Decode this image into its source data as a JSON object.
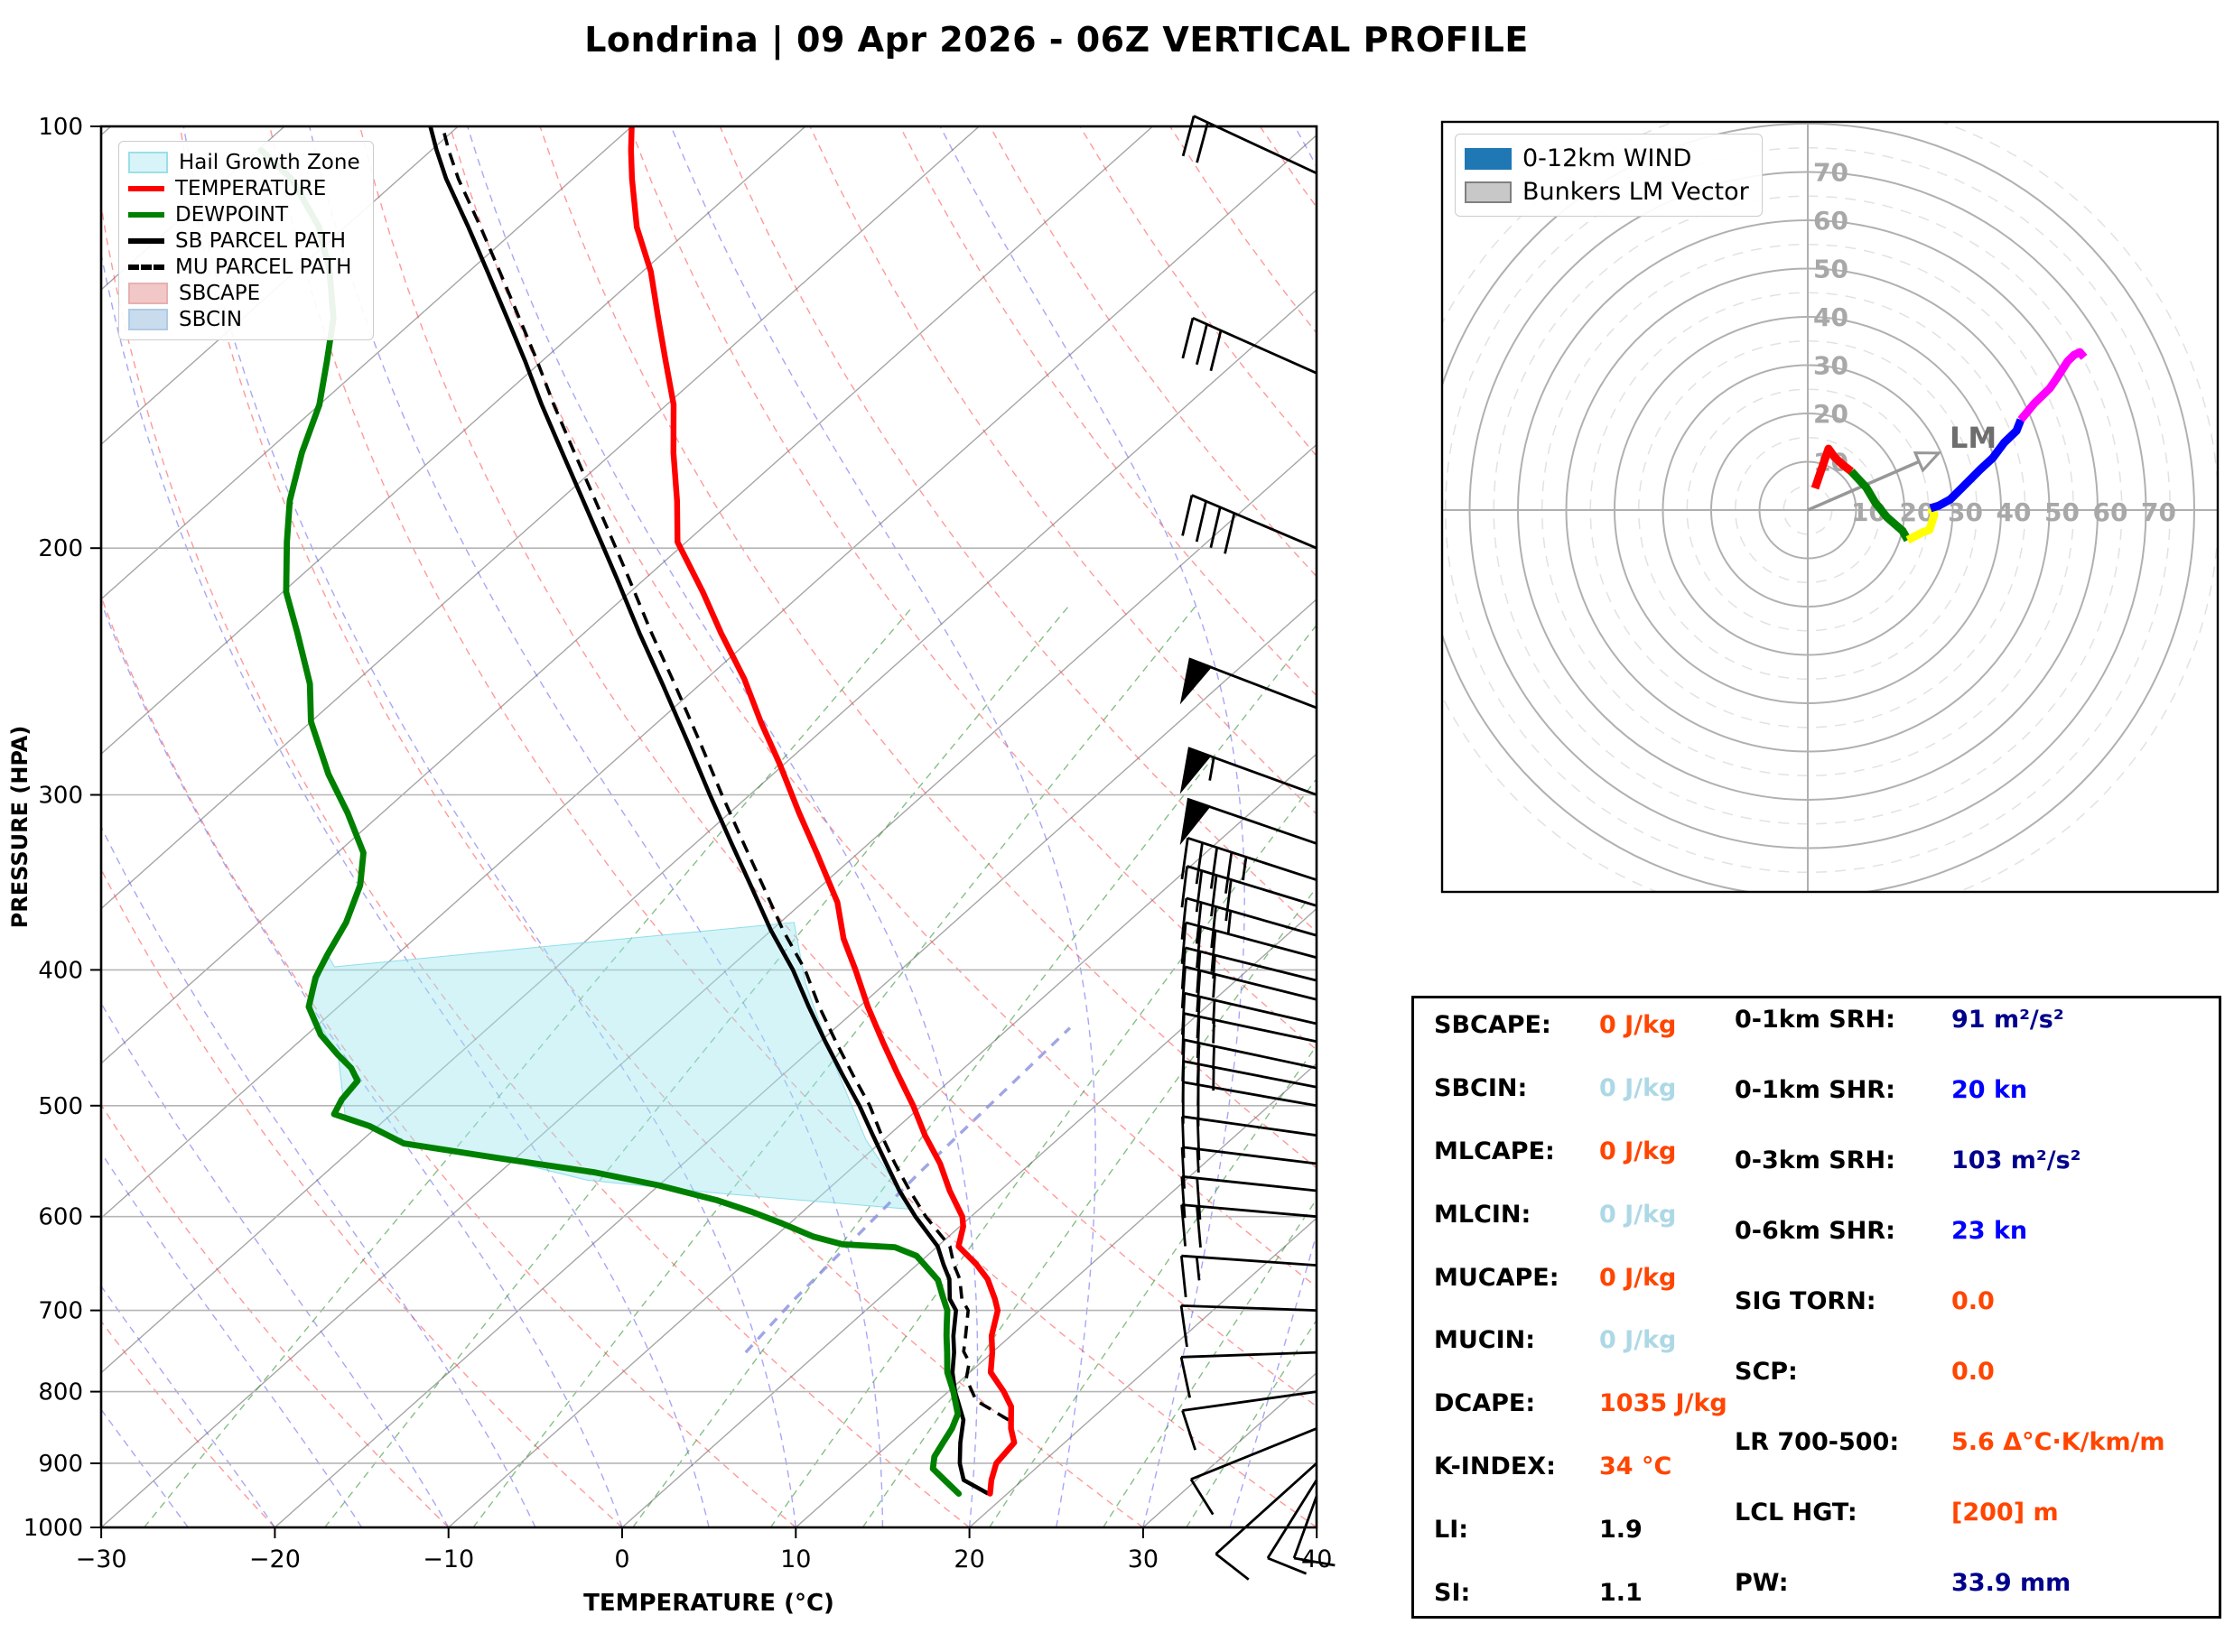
{
  "title": "Londrina | 09 Apr 2026 - 06Z VERTICAL PROFILE",
  "skewt": {
    "xlabel": "TEMPERATURE (°C)",
    "ylabel": "PRESSURE (HPA)",
    "x_ticks": [
      -30,
      -20,
      -10,
      0,
      10,
      20,
      30,
      40
    ],
    "y_ticks": [
      100,
      200,
      300,
      400,
      500,
      600,
      700,
      800,
      900,
      1000
    ],
    "legend": [
      {
        "label": "Hail Growth Zone",
        "swatch": "patch",
        "color": "#d8f4f8",
        "edge": "#9adfe8"
      },
      {
        "label": "TEMPERATURE",
        "swatch": "line",
        "color": "#ff0000"
      },
      {
        "label": "DEWPOINT",
        "swatch": "line",
        "color": "#008000"
      },
      {
        "label": "SB PARCEL PATH",
        "swatch": "line",
        "color": "#000000"
      },
      {
        "label": "MU PARCEL PATH",
        "swatch": "dashed",
        "color": "#000000"
      },
      {
        "label": "SBCAPE",
        "swatch": "patch",
        "color": "#f2c7c7",
        "edge": "#e8b0b0"
      },
      {
        "label": "SBCIN",
        "swatch": "patch",
        "color": "#c9dcee",
        "edge": "#b0cbe4"
      }
    ]
  },
  "hodograph": {
    "legend": [
      {
        "label": "0-12km WIND",
        "color": "#1f77b4",
        "edge": "#1f77b4"
      },
      {
        "label": "Bunkers LM Vector",
        "color": "#c8c8c8",
        "edge": "#808080"
      }
    ],
    "ring_labels": [
      10,
      20,
      30,
      40,
      50,
      60,
      70
    ],
    "lm_label": "LM"
  },
  "stats": {
    "left": [
      {
        "label": "SBCAPE:",
        "value": "0 J/kg",
        "color": "#ff4500"
      },
      {
        "label": "SBCIN:",
        "value": "0 J/kg",
        "color": "#add8e6"
      },
      {
        "label": "MLCAPE:",
        "value": "0 J/kg",
        "color": "#ff4500"
      },
      {
        "label": "MLCIN:",
        "value": "0 J/kg",
        "color": "#add8e6"
      },
      {
        "label": "MUCAPE:",
        "value": "0 J/kg",
        "color": "#ff4500"
      },
      {
        "label": "MUCIN:",
        "value": "0 J/kg",
        "color": "#add8e6"
      },
      {
        "label": "DCAPE:",
        "value": "1035 J/kg",
        "color": "#ff4500"
      },
      {
        "label": "K-INDEX:",
        "value": "34 °C",
        "color": "#ff4500"
      },
      {
        "label": "LI:",
        "value": "1.9",
        "color": "#000000"
      },
      {
        "label": "SI:",
        "value": "1.1",
        "color": "#000000"
      }
    ],
    "right": [
      {
        "label": "0-1km SRH:",
        "value": "91 m²/s²",
        "color": "#00008b"
      },
      {
        "label": "0-1km SHR:",
        "value": "20 kn",
        "color": "#0000ff"
      },
      {
        "label": "0-3km SRH:",
        "value": "103 m²/s²",
        "color": "#00008b"
      },
      {
        "label": "0-6km SHR:",
        "value": "23 kn",
        "color": "#0000ff"
      },
      {
        "label": "SIG TORN:",
        "value": "0.0",
        "color": "#ff4500"
      },
      {
        "label": "SCP:",
        "value": "0.0",
        "color": "#ff4500"
      },
      {
        "label": "LR 700-500:",
        "value": "5.6 Δ°C·K/km/m",
        "color": "#ff4500"
      },
      {
        "label": "LCL HGT:",
        "value": "[200] m",
        "color": "#ff4500"
      },
      {
        "label": "PW:",
        "value": "33.9 mm",
        "color": "#00008b"
      }
    ]
  },
  "chart_data": {
    "type": "skewt-logp-sounding-with-hodograph",
    "pressure_axis_hpa": [
      100,
      1000
    ],
    "temperature_axis_c": [
      -30,
      40
    ],
    "temperature_profile_p_T": [
      [
        946,
        19.0
      ],
      [
        925,
        18.2
      ],
      [
        900,
        17.4
      ],
      [
        870,
        17.1
      ],
      [
        850,
        16.0
      ],
      [
        820,
        14.6
      ],
      [
        800,
        13.2
      ],
      [
        775,
        11.2
      ],
      [
        750,
        10.0
      ],
      [
        730,
        8.9
      ],
      [
        700,
        7.6
      ],
      [
        687,
        6.7
      ],
      [
        665,
        5.0
      ],
      [
        649,
        3.4
      ],
      [
        630,
        1.2
      ],
      [
        610,
        0.2
      ],
      [
        600,
        -0.5
      ],
      [
        575,
        -2.9
      ],
      [
        550,
        -5.2
      ],
      [
        525,
        -7.9
      ],
      [
        500,
        -10.5
      ],
      [
        475,
        -13.4
      ],
      [
        450,
        -16.4
      ],
      [
        425,
        -19.5
      ],
      [
        400,
        -22.6
      ],
      [
        380,
        -25.3
      ],
      [
        358,
        -28.0
      ],
      [
        330,
        -32.4
      ],
      [
        309,
        -36.0
      ],
      [
        285,
        -40.3
      ],
      [
        266,
        -44.1
      ],
      [
        248,
        -47.8
      ],
      [
        230,
        -52.1
      ],
      [
        215,
        -55.8
      ],
      [
        198,
        -60.5
      ],
      [
        185,
        -63.2
      ],
      [
        171,
        -66.5
      ],
      [
        158,
        -69.6
      ],
      [
        147,
        -72.9
      ],
      [
        137,
        -76.1
      ],
      [
        127,
        -79.5
      ],
      [
        118,
        -83.2
      ],
      [
        109,
        -86.6
      ],
      [
        104,
        -88.5
      ],
      [
        100,
        -90.0
      ]
    ],
    "dewpoint_profile_p_T": [
      [
        946,
        17.2
      ],
      [
        925,
        15.5
      ],
      [
        908,
        14.1
      ],
      [
        890,
        13.4
      ],
      [
        870,
        13.0
      ],
      [
        850,
        12.6
      ],
      [
        830,
        12.0
      ],
      [
        800,
        10.3
      ],
      [
        775,
        8.7
      ],
      [
        750,
        7.4
      ],
      [
        730,
        6.3
      ],
      [
        715,
        5.5
      ],
      [
        700,
        4.7
      ],
      [
        685,
        3.6
      ],
      [
        666,
        2.2
      ],
      [
        650,
        0.5
      ],
      [
        640,
        -0.6
      ],
      [
        631,
        -2.4
      ],
      [
        628,
        -5.6
      ],
      [
        620,
        -7.8
      ],
      [
        606,
        -10.6
      ],
      [
        595,
        -13.0
      ],
      [
        584,
        -15.7
      ],
      [
        570,
        -20.0
      ],
      [
        558,
        -24.5
      ],
      [
        545,
        -31.0
      ],
      [
        532,
        -37.4
      ],
      [
        517,
        -40.5
      ],
      [
        507,
        -43.3
      ],
      [
        495,
        -43.8
      ],
      [
        480,
        -44.1
      ],
      [
        470,
        -45.3
      ],
      [
        460,
        -46.9
      ],
      [
        445,
        -49.2
      ],
      [
        425,
        -51.7
      ],
      [
        405,
        -53.2
      ],
      [
        390,
        -54.0
      ],
      [
        370,
        -55.0
      ],
      [
        348,
        -56.6
      ],
      [
        330,
        -58.5
      ],
      [
        309,
        -62.0
      ],
      [
        290,
        -65.6
      ],
      [
        266,
        -70.0
      ],
      [
        250,
        -72.5
      ],
      [
        230,
        -76.5
      ],
      [
        215,
        -79.8
      ],
      [
        198,
        -83.0
      ],
      [
        185,
        -85.5
      ],
      [
        171,
        -87.9
      ],
      [
        158,
        -90.0
      ],
      [
        147,
        -92.4
      ],
      [
        137,
        -94.8
      ],
      [
        127,
        -98.0
      ],
      [
        118,
        -101.5
      ],
      [
        109,
        -106.2
      ],
      [
        104,
        -109.8
      ]
    ],
    "sb_parcel_path_p_T": [
      [
        946,
        18.9
      ],
      [
        925,
        16.6
      ],
      [
        900,
        15.3
      ],
      [
        870,
        14.0
      ],
      [
        838,
        12.7
      ],
      [
        800,
        10.4
      ],
      [
        775,
        9.0
      ],
      [
        750,
        7.8
      ],
      [
        730,
        6.7
      ],
      [
        700,
        5.2
      ],
      [
        687,
        4.1
      ],
      [
        665,
        2.8
      ],
      [
        649,
        1.5
      ],
      [
        630,
        0.0
      ],
      [
        600,
        -3.2
      ],
      [
        575,
        -5.8
      ],
      [
        550,
        -8.3
      ],
      [
        525,
        -10.9
      ],
      [
        500,
        -13.6
      ],
      [
        475,
        -16.6
      ],
      [
        450,
        -19.7
      ],
      [
        425,
        -22.9
      ],
      [
        400,
        -26.2
      ],
      [
        375,
        -30.0
      ],
      [
        350,
        -33.8
      ],
      [
        325,
        -37.9
      ],
      [
        300,
        -42.3
      ],
      [
        275,
        -47.0
      ],
      [
        250,
        -52.2
      ],
      [
        230,
        -56.8
      ],
      [
        210,
        -61.7
      ],
      [
        198,
        -64.9
      ],
      [
        185,
        -68.6
      ],
      [
        171,
        -72.9
      ],
      [
        158,
        -77.2
      ],
      [
        147,
        -81.0
      ],
      [
        137,
        -84.8
      ],
      [
        127,
        -88.9
      ],
      [
        118,
        -92.9
      ],
      [
        109,
        -97.3
      ],
      [
        104,
        -99.7
      ],
      [
        100,
        -101.6
      ]
    ],
    "mu_parcel_path_p_T": [
      [
        838,
        15.3
      ],
      [
        812,
        12.2
      ],
      [
        783,
        10.2
      ],
      [
        762,
        9.3
      ],
      [
        749,
        8.3
      ],
      [
        730,
        7.4
      ],
      [
        700,
        5.9
      ],
      [
        687,
        4.8
      ],
      [
        665,
        3.4
      ],
      [
        649,
        2.1
      ],
      [
        630,
        0.7
      ],
      [
        600,
        -2.6
      ],
      [
        575,
        -5.2
      ],
      [
        550,
        -7.8
      ],
      [
        525,
        -10.4
      ],
      [
        500,
        -13.0
      ],
      [
        475,
        -16.0
      ],
      [
        450,
        -19.1
      ],
      [
        425,
        -22.3
      ],
      [
        400,
        -25.5
      ],
      [
        375,
        -29.3
      ],
      [
        350,
        -33.1
      ],
      [
        325,
        -37.2
      ],
      [
        300,
        -41.6
      ],
      [
        275,
        -46.3
      ],
      [
        250,
        -51.5
      ],
      [
        230,
        -56.1
      ],
      [
        210,
        -61.0
      ],
      [
        198,
        -64.2
      ],
      [
        185,
        -67.9
      ],
      [
        171,
        -72.2
      ],
      [
        158,
        -76.5
      ],
      [
        147,
        -80.3
      ],
      [
        137,
        -84.1
      ],
      [
        127,
        -88.2
      ],
      [
        118,
        -92.2
      ],
      [
        109,
        -96.6
      ],
      [
        104,
        -99.0
      ],
      [
        100,
        -100.9
      ]
    ],
    "hail_growth_zone_polygon_p_T": [
      [
        398,
        -52.8
      ],
      [
        370,
        -29.2
      ],
      [
        409,
        -24.6
      ],
      [
        468,
        -17.6
      ],
      [
        529,
        -11.0
      ],
      [
        593,
        -3.8
      ],
      [
        577,
        -16.4
      ],
      [
        565,
        -24.5
      ],
      [
        545,
        -31.0
      ],
      [
        532,
        -37.4
      ],
      [
        509,
        -42.5
      ],
      [
        460,
        -46.9
      ],
      [
        425,
        -51.7
      ],
      [
        390,
        -54.0
      ]
    ],
    "highlight_line_p_T": [
      [
        750,
        -4.2
      ],
      [
        690,
        -4.8
      ],
      [
        560,
        -5.8
      ],
      [
        440,
        -6.5
      ]
    ],
    "wind_barbs_p_spd_dir": [
      [
        950,
        12,
        200
      ],
      [
        925,
        10,
        212
      ],
      [
        900,
        10,
        228
      ],
      [
        850,
        10,
        248
      ],
      [
        800,
        10,
        262
      ],
      [
        750,
        10,
        268
      ],
      [
        700,
        12,
        272
      ],
      [
        650,
        15,
        274
      ],
      [
        600,
        18,
        275
      ],
      [
        575,
        18,
        276
      ],
      [
        550,
        15,
        277
      ],
      [
        525,
        20,
        278
      ],
      [
        500,
        22,
        280
      ],
      [
        485,
        25,
        281
      ],
      [
        470,
        25,
        282
      ],
      [
        450,
        25,
        282
      ],
      [
        437,
        25,
        283
      ],
      [
        420,
        25,
        284
      ],
      [
        407,
        25,
        284
      ],
      [
        392,
        30,
        285
      ],
      [
        378,
        35,
        286
      ],
      [
        360,
        40,
        287
      ],
      [
        345,
        45,
        288
      ],
      [
        325,
        50,
        289
      ],
      [
        300,
        55,
        290
      ],
      [
        260,
        50,
        291
      ],
      [
        200,
        40,
        293
      ],
      [
        150,
        30,
        294
      ],
      [
        108,
        20,
        295
      ]
    ],
    "background": {
      "isotherms_c": {
        "min": -120,
        "max": 40,
        "step": 10
      },
      "dry_adiabats_c": {
        "min": -30,
        "max": 240,
        "step": 10
      },
      "moist_adiabats_c": {
        "min": -30,
        "max": 40,
        "step": 5
      },
      "mixing_ratios_gkg": [
        0.4,
        1,
        2,
        4,
        7,
        10,
        16,
        24,
        32
      ],
      "pressure_gridlines_hpa": [
        200,
        300,
        400,
        500,
        600,
        700,
        800,
        900
      ]
    },
    "hodograph": {
      "ring_step_kn": 10,
      "trace_segments_uv_kn": [
        {
          "layer": "0-1km",
          "color": "#ff0000",
          "points": [
            [
              1.5,
              4.5
            ],
            [
              2.5,
              7.5
            ],
            [
              4.3,
              12.7
            ],
            [
              5.5,
              11.0
            ],
            [
              7.2,
              9.4
            ],
            [
              9.0,
              8.0
            ]
          ]
        },
        {
          "layer": "1-3km",
          "color": "#008000",
          "points": [
            [
              9.0,
              8.0
            ],
            [
              12.1,
              4.7
            ],
            [
              14.0,
              1.5
            ],
            [
              16.4,
              -1.5
            ],
            [
              19.6,
              -4.3
            ],
            [
              20.7,
              -6.2
            ]
          ]
        },
        {
          "layer": "3-6km",
          "color": "#ffff00",
          "points": [
            [
              20.7,
              -6.2
            ],
            [
              23.6,
              -4.7
            ],
            [
              25.2,
              -4.1
            ],
            [
              26.2,
              -0.9
            ],
            [
              25.4,
              0.4
            ]
          ]
        },
        {
          "layer": "6-9km",
          "color": "#0000ff",
          "points": [
            [
              25.4,
              0.4
            ],
            [
              27.1,
              0.9
            ],
            [
              29.5,
              2.2
            ],
            [
              32.0,
              4.7
            ],
            [
              35.7,
              8.4
            ],
            [
              38.3,
              10.8
            ],
            [
              40.7,
              14.0
            ],
            [
              43.2,
              16.4
            ],
            [
              44.1,
              18.7
            ]
          ]
        },
        {
          "layer": "9-12km",
          "color": "#ff00ff",
          "points": [
            [
              44.1,
              18.7
            ],
            [
              46.9,
              22.1
            ],
            [
              50.1,
              25.2
            ],
            [
              51.4,
              27.1
            ],
            [
              53.8,
              30.8
            ],
            [
              55.1,
              32.1
            ],
            [
              56.3,
              32.7
            ],
            [
              57.2,
              31.6
            ]
          ]
        }
      ],
      "bunkers_lm_vector_uv_kn": [
        27.1,
        11.8
      ]
    }
  }
}
